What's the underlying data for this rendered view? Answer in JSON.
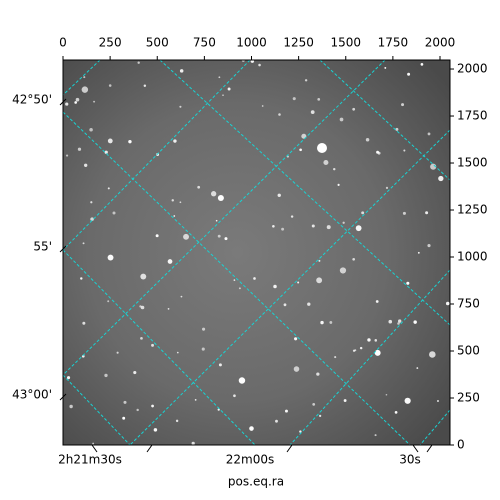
{
  "chart_data": {
    "type": "image",
    "xlabel": "pos.eq.ra",
    "xlim": [
      0,
      2053
    ],
    "ylim": [
      0,
      2048
    ],
    "xticks": [
      0,
      250,
      500,
      750,
      1000,
      1250,
      1500,
      1750,
      2000
    ],
    "yticks": [
      0,
      250,
      500,
      750,
      1000,
      1250,
      1500,
      1750,
      2000
    ],
    "ra_ticks": [
      "2h21m30s",
      "22m00s",
      "30s"
    ],
    "dec_ticks": [
      "42°50'",
      "55'",
      "43°00'"
    ],
    "grid": true,
    "grid_color": "#19d3d3"
  }
}
